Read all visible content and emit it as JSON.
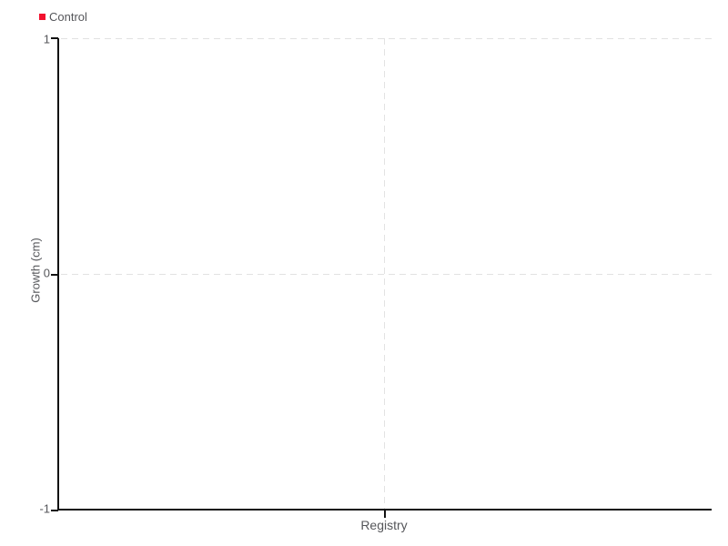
{
  "chart_data": {
    "type": "scatter",
    "title": "",
    "xlabel": "",
    "ylabel": "Growth (cm)",
    "categories": [
      "Registry"
    ],
    "series": [
      {
        "name": "Control",
        "color": "#f2112e",
        "values": []
      }
    ],
    "ylim": [
      -1,
      1
    ],
    "yticks": [
      "1",
      "0",
      "-1"
    ],
    "grid": true,
    "grid_style": "dashed",
    "legend_position": "top-left"
  },
  "colors": {
    "background": "#ffffff",
    "axis": "#121212",
    "gridline": "#e2e2e2",
    "text": "#55565a",
    "legend_marker": "#f2112e"
  }
}
